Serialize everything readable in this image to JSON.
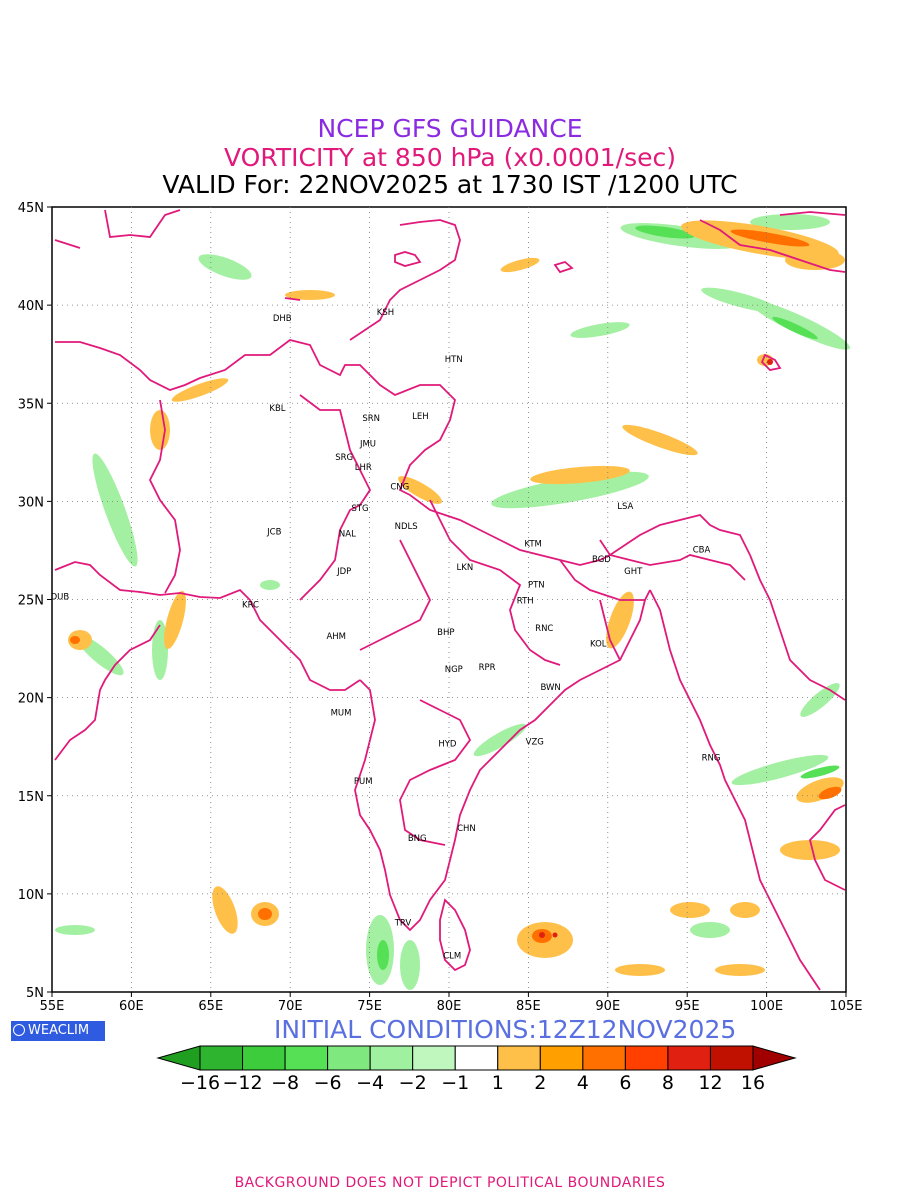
{
  "titles": {
    "line1": "NCEP GFS GUIDANCE",
    "line2": "VORTICITY at 850 hPa (x0.0001/sec)",
    "line3": "VALID For: 22NOV2025 at 1730 IST /1200 UTC"
  },
  "axes": {
    "lon_labels": [
      "55E",
      "60E",
      "65E",
      "70E",
      "75E",
      "80E",
      "85E",
      "90E",
      "95E",
      "100E",
      "105E"
    ],
    "lat_labels": [
      "45N",
      "40N",
      "35N",
      "30N",
      "25N",
      "20N",
      "15N",
      "10N",
      "5N"
    ],
    "lon_range": [
      55,
      105
    ],
    "lat_range": [
      5,
      45
    ],
    "grid": "dotted"
  },
  "stations": [
    {
      "code": "DHB",
      "lon": 69.5,
      "lat": 39.2
    },
    {
      "code": "KSH",
      "lon": 76.0,
      "lat": 39.5
    },
    {
      "code": "HTN",
      "lon": 80.3,
      "lat": 37.1
    },
    {
      "code": "KBL",
      "lon": 69.2,
      "lat": 34.6
    },
    {
      "code": "SRN",
      "lon": 75.1,
      "lat": 34.1
    },
    {
      "code": "LEH",
      "lon": 78.2,
      "lat": 34.2
    },
    {
      "code": "JMU",
      "lon": 74.9,
      "lat": 32.8
    },
    {
      "code": "SRG",
      "lon": 73.4,
      "lat": 32.1
    },
    {
      "code": "LHR",
      "lon": 74.6,
      "lat": 31.6
    },
    {
      "code": "CNG",
      "lon": 76.9,
      "lat": 30.6
    },
    {
      "code": "STG",
      "lon": 74.4,
      "lat": 29.5
    },
    {
      "code": "NDLS",
      "lon": 77.3,
      "lat": 28.6
    },
    {
      "code": "LSA",
      "lon": 91.1,
      "lat": 29.6
    },
    {
      "code": "JCB",
      "lon": 69.0,
      "lat": 28.3
    },
    {
      "code": "NAL",
      "lon": 73.6,
      "lat": 28.2
    },
    {
      "code": "KTM",
      "lon": 85.3,
      "lat": 27.7
    },
    {
      "code": "BGD",
      "lon": 89.6,
      "lat": 26.9
    },
    {
      "code": "CBA",
      "lon": 95.9,
      "lat": 27.4
    },
    {
      "code": "JDP",
      "lon": 73.4,
      "lat": 26.3
    },
    {
      "code": "LKN",
      "lon": 81.0,
      "lat": 26.5
    },
    {
      "code": "GHT",
      "lon": 91.6,
      "lat": 26.3
    },
    {
      "code": "PTN",
      "lon": 85.5,
      "lat": 25.6
    },
    {
      "code": "DUB",
      "lon": 55.5,
      "lat": 25.0
    },
    {
      "code": "KRC",
      "lon": 67.5,
      "lat": 24.6
    },
    {
      "code": "RTH",
      "lon": 84.8,
      "lat": 24.8
    },
    {
      "code": "AHM",
      "lon": 72.9,
      "lat": 23.0
    },
    {
      "code": "BHP",
      "lon": 79.8,
      "lat": 23.2
    },
    {
      "code": "RNC",
      "lon": 86.0,
      "lat": 23.4
    },
    {
      "code": "KOL",
      "lon": 89.4,
      "lat": 22.6
    },
    {
      "code": "NGP",
      "lon": 80.3,
      "lat": 21.3
    },
    {
      "code": "RPR",
      "lon": 82.4,
      "lat": 21.4
    },
    {
      "code": "BWN",
      "lon": 86.4,
      "lat": 20.4
    },
    {
      "code": "MUM",
      "lon": 73.2,
      "lat": 19.1
    },
    {
      "code": "HYD",
      "lon": 79.9,
      "lat": 17.5
    },
    {
      "code": "VZG",
      "lon": 85.4,
      "lat": 17.6
    },
    {
      "code": "RNG",
      "lon": 96.5,
      "lat": 16.8
    },
    {
      "code": "PUM",
      "lon": 74.6,
      "lat": 15.6
    },
    {
      "code": "CHN",
      "lon": 81.1,
      "lat": 13.2
    },
    {
      "code": "BNG",
      "lon": 78.0,
      "lat": 12.7
    },
    {
      "code": "TRV",
      "lon": 77.1,
      "lat": 8.4
    },
    {
      "code": "CLM",
      "lon": 80.2,
      "lat": 6.7
    }
  ],
  "logo": {
    "text": "WEACLIM"
  },
  "initial_conditions": "INITIAL CONDITIONS:12Z12NOV2025",
  "colorbar": {
    "labels": [
      "−16",
      "−12",
      "−8",
      "−6",
      "−4",
      "−2",
      "−1",
      "1",
      "2",
      "4",
      "6",
      "8",
      "12",
      "16"
    ],
    "colors": [
      "#1f9e1f",
      "#2fb42f",
      "#3ccc3c",
      "#55e055",
      "#7fe87f",
      "#9ff09f",
      "#bff7bf",
      "#ffffff",
      "#ffc04a",
      "#ffa000",
      "#ff7000",
      "#ff4000",
      "#e02010",
      "#c01000",
      "#a00000"
    ]
  },
  "footer": "BACKGROUND DOES NOT DEPICT POLITICAL BOUNDARIES"
}
